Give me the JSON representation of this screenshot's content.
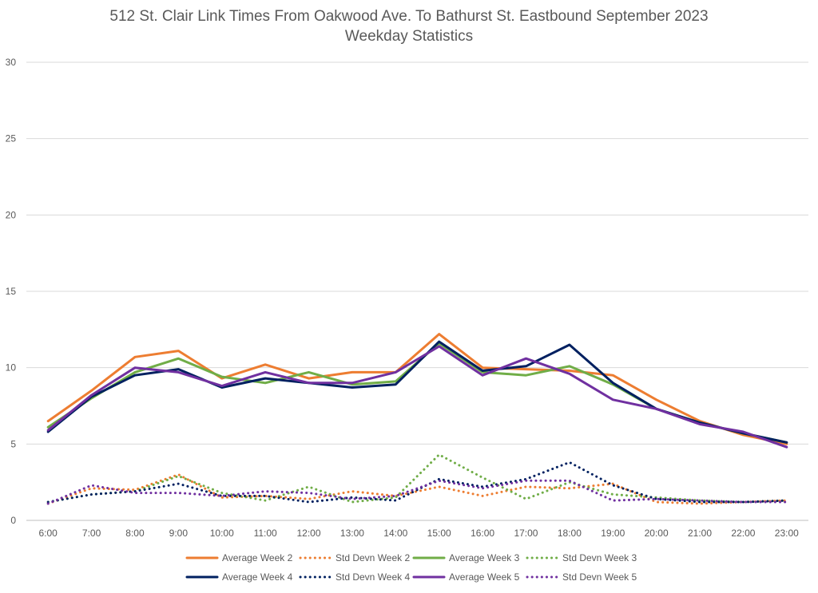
{
  "chart_data": {
    "type": "line",
    "title": "512 St. Clair Link Times From Oakwood Ave. To Bathurst St. Eastbound September 2023",
    "subtitle": "Weekday Statistics",
    "categories": [
      "6:00",
      "7:00",
      "8:00",
      "9:00",
      "10:00",
      "11:00",
      "12:00",
      "13:00",
      "14:00",
      "15:00",
      "16:00",
      "17:00",
      "18:00",
      "19:00",
      "20:00",
      "21:00",
      "22:00",
      "23:00"
    ],
    "ylim": [
      0,
      30
    ],
    "yticks": [
      0,
      5,
      10,
      15,
      20,
      25,
      30
    ],
    "grid": true,
    "legend_position": "bottom",
    "series": [
      {
        "name": "Average Week 2",
        "color": "#ED7D31",
        "style": "solid",
        "values": [
          6.5,
          8.5,
          10.7,
          11.1,
          9.3,
          10.2,
          9.3,
          9.7,
          9.7,
          12.2,
          10.0,
          9.9,
          9.8,
          9.5,
          7.9,
          6.5,
          5.6,
          5.0
        ]
      },
      {
        "name": "Std Devn Week 2",
        "color": "#ED7D31",
        "style": "dotted",
        "values": [
          1.1,
          2.1,
          2.0,
          3.0,
          1.5,
          1.6,
          1.4,
          1.9,
          1.6,
          2.2,
          1.6,
          2.2,
          2.1,
          2.4,
          1.2,
          1.1,
          1.2,
          1.3
        ]
      },
      {
        "name": "Average Week 3",
        "color": "#70AD47",
        "style": "solid",
        "values": [
          6.1,
          8.0,
          9.7,
          10.6,
          9.4,
          9.0,
          9.7,
          8.9,
          9.1,
          11.6,
          9.7,
          9.5,
          10.1,
          8.9,
          7.3,
          6.4,
          5.7,
          5.1
        ]
      },
      {
        "name": "Std Devn Week 3",
        "color": "#70AD47",
        "style": "dotted",
        "values": [
          1.2,
          1.7,
          1.9,
          2.9,
          1.8,
          1.3,
          2.2,
          1.2,
          1.5,
          4.3,
          2.8,
          1.4,
          2.5,
          1.7,
          1.5,
          1.3,
          1.2,
          1.3
        ]
      },
      {
        "name": "Average Week 4",
        "color": "#002060",
        "style": "solid",
        "values": [
          5.8,
          8.1,
          9.5,
          9.9,
          8.7,
          9.3,
          9.0,
          8.7,
          8.9,
          11.7,
          9.8,
          10.1,
          11.5,
          9.0,
          7.3,
          6.4,
          5.7,
          5.1
        ]
      },
      {
        "name": "Std Devn Week 4",
        "color": "#002060",
        "style": "dotted",
        "values": [
          1.2,
          1.7,
          1.9,
          2.4,
          1.6,
          1.6,
          1.2,
          1.5,
          1.3,
          2.7,
          2.2,
          2.7,
          3.8,
          2.3,
          1.4,
          1.2,
          1.2,
          1.3
        ]
      },
      {
        "name": "Average Week 5",
        "color": "#7030A0",
        "style": "solid",
        "values": [
          5.9,
          8.2,
          10.0,
          9.7,
          8.8,
          9.7,
          9.0,
          9.0,
          9.7,
          11.4,
          9.5,
          10.6,
          9.6,
          7.9,
          7.3,
          6.3,
          5.8,
          4.8
        ]
      },
      {
        "name": "Std Devn Week 5",
        "color": "#7030A0",
        "style": "dotted",
        "values": [
          1.1,
          2.3,
          1.8,
          1.8,
          1.6,
          1.9,
          1.8,
          1.4,
          1.6,
          2.6,
          2.1,
          2.6,
          2.6,
          1.3,
          1.4,
          1.3,
          1.2,
          1.2
        ]
      }
    ]
  }
}
